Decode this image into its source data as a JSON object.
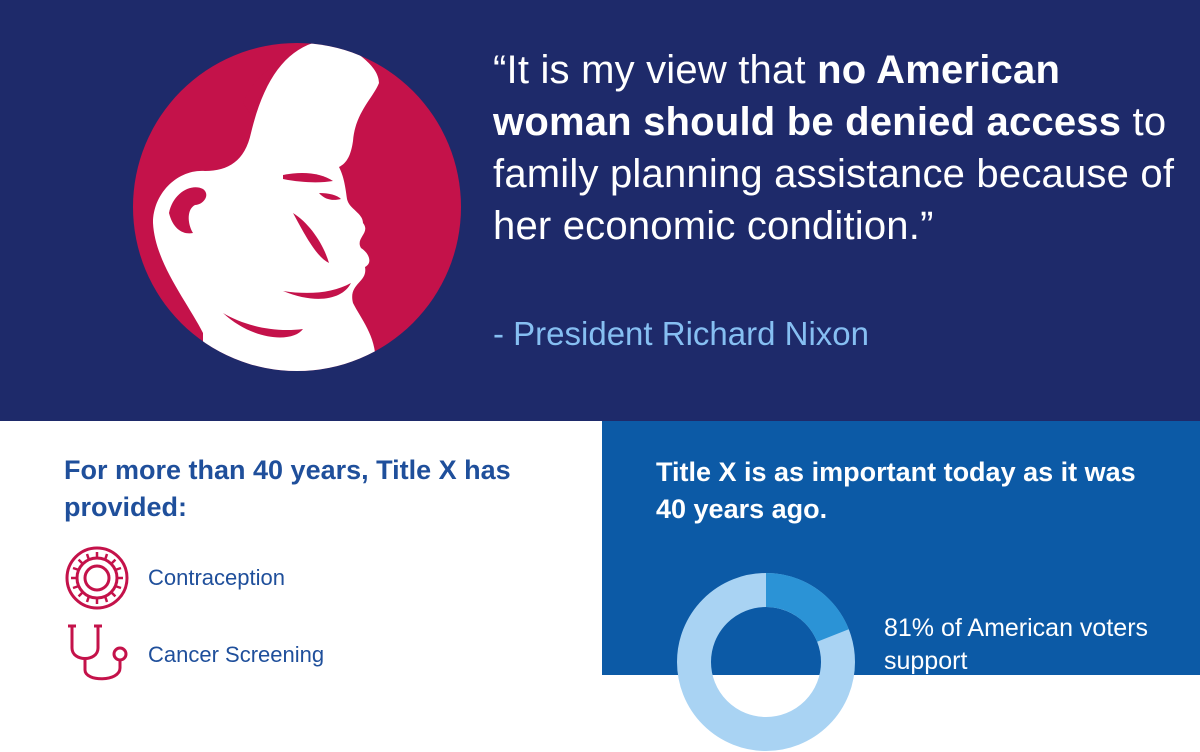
{
  "quote": {
    "open_mark": "“",
    "part1": "It is my view that ",
    "bold1": "no American woman should be denied access",
    "part2": " to family planning assistance because of her economic condition.",
    "close_mark": "”"
  },
  "attribution": "- President Richard Nixon",
  "left": {
    "heading": "For more than 40 years, Title X has provided:",
    "services": [
      {
        "label": "Contraception",
        "icon": "contraception-icon"
      },
      {
        "label": "Cancer Screening",
        "icon": "stethoscope-icon"
      }
    ]
  },
  "right": {
    "heading": "Title X is as important today as it was 40 years ago.",
    "stat": "81% of American voters support"
  },
  "donut": {
    "value": 0.19
  },
  "colors": {
    "navy": "#1e2a6a",
    "crimson": "#c4124a",
    "blue_panel": "#0c5aa6",
    "heading_blue": "#1f4f9b",
    "light_blue": "#86bff2",
    "donut_light": "#a9d3f3",
    "donut_accent": "#2b93d6"
  }
}
